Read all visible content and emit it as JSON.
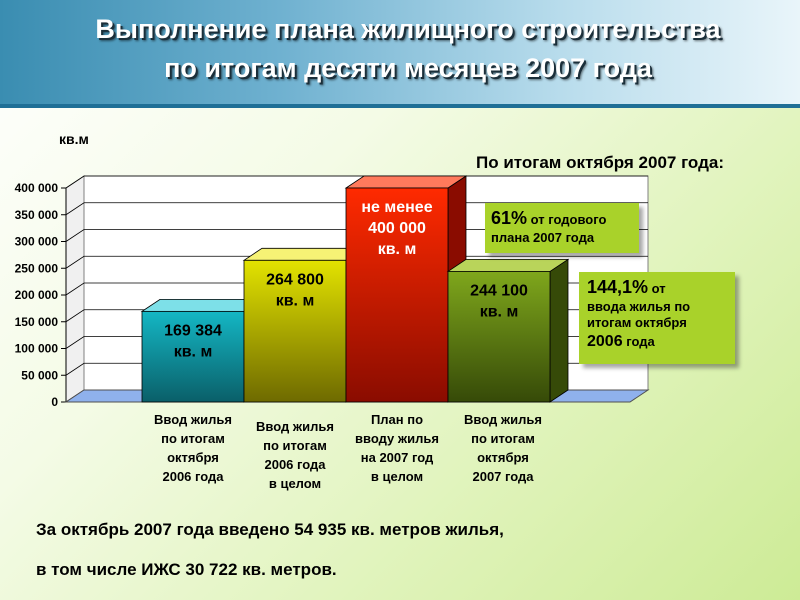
{
  "title": {
    "line1": "Выполнение плана жилищного строительства",
    "line2": "по итогам десяти месяцев 2007 года"
  },
  "unit_label": "кв.м",
  "chart_heading": "По итогам октября 2007 года:",
  "chart_data": {
    "type": "bar",
    "title": "",
    "ylabel": "кв.м",
    "ylim": [
      0,
      400000
    ],
    "yticks": [
      "0",
      "50 000",
      "100 000",
      "150 000",
      "200 000",
      "250 000",
      "300 000",
      "350 000",
      "400 000"
    ],
    "grid": true,
    "legend": "none",
    "categories": [
      [
        "Ввод жилья",
        "по итогам",
        "октября",
        "2006 года"
      ],
      [
        "Ввод жилья",
        "по итогам",
        "2006 года",
        "в целом"
      ],
      [
        "План по",
        "вводу жилья",
        "на 2007 год",
        "в целом"
      ],
      [
        "Ввод жилья",
        "по итогам",
        "октября",
        "2007 года"
      ]
    ],
    "values": [
      169384,
      264800,
      400000,
      244100
    ],
    "data_labels": [
      [
        "169 384",
        "кв. м"
      ],
      [
        "264 800",
        "кв. м"
      ],
      [
        "не менее",
        "400 000",
        "кв. м"
      ],
      [
        "244 100",
        "кв. м"
      ]
    ],
    "colors": [
      {
        "front": "#14b7c4",
        "dark": "#0a5f69",
        "top": "#7de0e8",
        "text": "#000000"
      },
      {
        "front": "#e3e300",
        "dark": "#6e6a00",
        "top": "#f6f275",
        "text": "#000000"
      },
      {
        "front": "#ff2a00",
        "dark": "#8a0c00",
        "top": "#ff7a5c",
        "text": "#ffffff"
      },
      {
        "front": "#7fa71c",
        "dark": "#364a08",
        "top": "#b9d45a",
        "text": "#000000"
      }
    ]
  },
  "callouts": {
    "c1": {
      "pct": "61%",
      "rest1": " от годового",
      "line2": "плана 2007 года"
    },
    "c2": {
      "pct": "144,1%",
      "rest1": " от",
      "line2": "ввода жилья по",
      "line3": "итогам октября",
      "line4a": "2006",
      "line4b": " года"
    }
  },
  "bottom": {
    "line1": "За октябрь 2007 года введено 54 935 кв. метров жилья,",
    "line2": "в том числе ИЖС 30 722 кв. метров."
  }
}
